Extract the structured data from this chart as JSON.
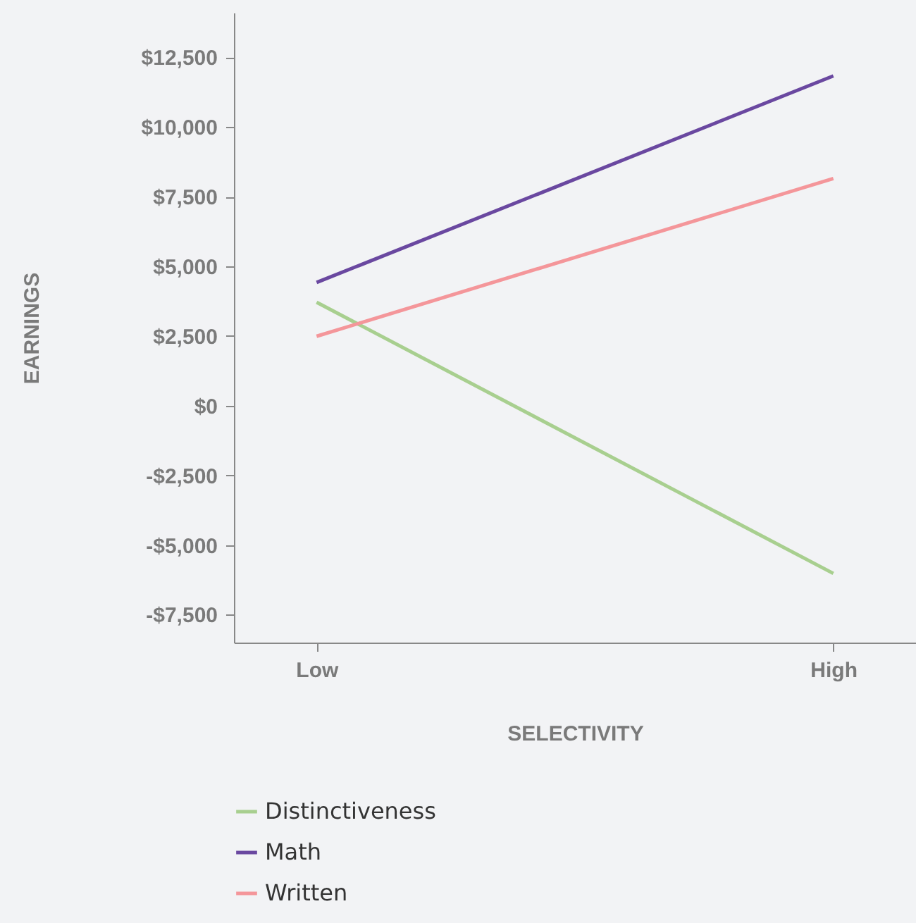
{
  "chart_data": {
    "type": "line",
    "xlabel": "SELECTIVITY",
    "ylabel": "EARNINGS",
    "categories": [
      "Low",
      "High"
    ],
    "ylim": [
      -8500,
      14100
    ],
    "yticks": [
      {
        "value": -7500,
        "label": "-$7,500"
      },
      {
        "value": -5000,
        "label": "-$5,000"
      },
      {
        "value": -2500,
        "label": "-$2,500"
      },
      {
        "value": 0,
        "label": "$0"
      },
      {
        "value": 2500,
        "label": "$2,500"
      },
      {
        "value": 5000,
        "label": "$5,000"
      },
      {
        "value": 7500,
        "label": "$7,500"
      },
      {
        "value": 10000,
        "label": "$10,000"
      },
      {
        "value": 12500,
        "label": "$12,500"
      }
    ],
    "series": [
      {
        "name": "Distinctiveness",
        "color": "#a8cf8f",
        "values": [
          3710,
          -6020
        ]
      },
      {
        "name": "Math",
        "color": "#6a48a0",
        "values": [
          4420,
          11830
        ]
      },
      {
        "name": "Written",
        "color": "#f4969a",
        "values": [
          2490,
          8150
        ]
      }
    ],
    "grid": false,
    "legend": "bottom left",
    "marker": "none",
    "line_style": "solid"
  }
}
